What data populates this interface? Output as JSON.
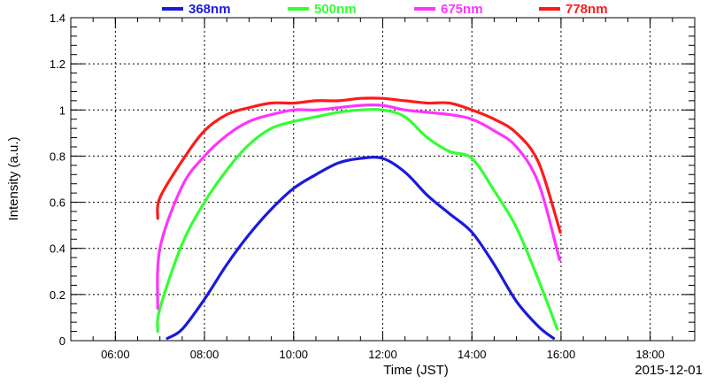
{
  "chart_data": {
    "type": "line",
    "xlabel": "Time (JST)",
    "ylabel": "Intensity (a.u.)",
    "date_label": "2015-12-01",
    "xlim": [
      "05:00",
      "19:00"
    ],
    "ylim": [
      0,
      1.4
    ],
    "x_ticks": [
      "06:00",
      "08:00",
      "10:00",
      "12:00",
      "14:00",
      "16:00",
      "18:00"
    ],
    "y_ticks": [
      "0",
      "0.2",
      "0.4",
      "0.6",
      "0.8",
      "1",
      "1.2",
      "1.4"
    ],
    "grid": true,
    "legend_position": "top",
    "series": [
      {
        "name": "368nm",
        "color": "#1a1adc",
        "x": [
          "07:10",
          "07:30",
          "08:00",
          "08:30",
          "09:00",
          "09:30",
          "10:00",
          "10:30",
          "11:00",
          "11:30",
          "12:00",
          "12:30",
          "13:00",
          "13:30",
          "14:00",
          "14:30",
          "15:00",
          "15:30",
          "15:50"
        ],
        "values": [
          0.01,
          0.05,
          0.18,
          0.33,
          0.46,
          0.57,
          0.66,
          0.72,
          0.77,
          0.79,
          0.79,
          0.73,
          0.63,
          0.55,
          0.47,
          0.33,
          0.17,
          0.06,
          0.01
        ]
      },
      {
        "name": "500nm",
        "color": "#33ff33",
        "x": [
          "06:57",
          "07:00",
          "07:30",
          "08:00",
          "08:30",
          "09:00",
          "09:30",
          "10:00",
          "10:30",
          "11:00",
          "11:30",
          "12:00",
          "12:30",
          "13:00",
          "13:30",
          "14:00",
          "14:30",
          "15:00",
          "15:30",
          "15:55"
        ],
        "values": [
          0.04,
          0.14,
          0.42,
          0.6,
          0.74,
          0.85,
          0.92,
          0.95,
          0.97,
          0.99,
          1.0,
          1.0,
          0.97,
          0.88,
          0.82,
          0.79,
          0.65,
          0.49,
          0.26,
          0.05
        ]
      },
      {
        "name": "675nm",
        "color": "#ff33ff",
        "x": [
          "06:57",
          "07:00",
          "07:30",
          "08:00",
          "08:30",
          "09:00",
          "09:30",
          "10:00",
          "10:30",
          "11:00",
          "11:30",
          "12:00",
          "12:30",
          "13:00",
          "13:30",
          "14:00",
          "14:30",
          "15:00",
          "15:30",
          "15:58"
        ],
        "values": [
          0.14,
          0.4,
          0.67,
          0.8,
          0.89,
          0.95,
          0.98,
          1.0,
          1.0,
          1.01,
          1.02,
          1.02,
          1.0,
          0.99,
          0.98,
          0.96,
          0.91,
          0.84,
          0.68,
          0.35
        ]
      },
      {
        "name": "778nm",
        "color": "#ff1a1a",
        "x": [
          "06:57",
          "07:00",
          "07:30",
          "08:00",
          "08:30",
          "09:00",
          "09:30",
          "10:00",
          "10:30",
          "11:00",
          "11:30",
          "12:00",
          "12:30",
          "13:00",
          "13:30",
          "14:00",
          "14:30",
          "15:00",
          "15:30",
          "15:59"
        ],
        "values": [
          0.53,
          0.62,
          0.78,
          0.91,
          0.98,
          1.01,
          1.03,
          1.03,
          1.04,
          1.04,
          1.05,
          1.05,
          1.04,
          1.03,
          1.03,
          1.0,
          0.96,
          0.9,
          0.77,
          0.47
        ]
      }
    ]
  }
}
